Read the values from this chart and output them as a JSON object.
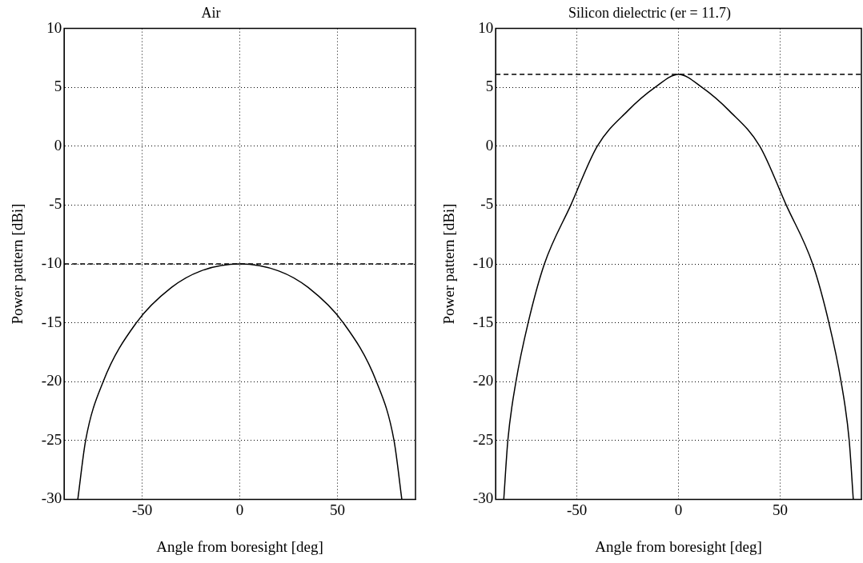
{
  "chart_data": [
    {
      "type": "line",
      "title": "Air",
      "xlabel": "Angle from boresight [deg]",
      "ylabel": "Power pattern [dBi]",
      "xlim": [
        -90,
        90
      ],
      "xticks": [
        -50,
        0,
        50
      ],
      "ylim": [
        -30,
        10
      ],
      "yticks": [
        -30,
        -25,
        -20,
        -15,
        -10,
        -5,
        0,
        5,
        10
      ],
      "grid": true,
      "marker": "none",
      "line_style": "solid",
      "x": [
        -83,
        -79,
        -70,
        -53,
        -35,
        -20,
        0,
        20,
        35,
        53,
        70,
        79,
        83
      ],
      "series": [
        {
          "color": "#000000",
          "values": [
            -30,
            -25,
            -20,
            -15,
            -12,
            -10.6,
            -10,
            -10.6,
            -12,
            -15,
            -20,
            -25,
            -30
          ]
        }
      ],
      "ref_lines": [
        {
          "axis": "y",
          "value": -10,
          "color": "#000000",
          "line_style": "dashed"
        }
      ]
    },
    {
      "type": "line",
      "title": "Silicon dielectric (er = 11.7)",
      "xlabel": "Angle from boresight [deg]",
      "ylabel": "Power pattern [dBi]",
      "xlim": [
        -90,
        90
      ],
      "xticks": [
        -50,
        0,
        50
      ],
      "ylim": [
        -30,
        10
      ],
      "yticks": [
        -30,
        -25,
        -20,
        -15,
        -10,
        -5,
        0,
        5,
        10
      ],
      "grid": true,
      "marker": "none",
      "line_style": "solid",
      "x": [
        -86,
        -84,
        -80,
        -74,
        -66,
        -53,
        -40,
        -25,
        -11.5,
        0,
        11.5,
        25,
        40,
        53,
        66,
        74,
        80,
        84,
        86
      ],
      "series": [
        {
          "color": "#000000",
          "values": [
            -30,
            -25,
            -20,
            -15,
            -10,
            -5,
            0,
            3,
            5,
            6.1,
            5,
            3,
            0,
            -5,
            -10,
            -15,
            -20,
            -25,
            -30
          ]
        }
      ],
      "ref_lines": [
        {
          "axis": "y",
          "value": 6.1,
          "color": "#000000",
          "line_style": "dashed"
        }
      ]
    }
  ]
}
